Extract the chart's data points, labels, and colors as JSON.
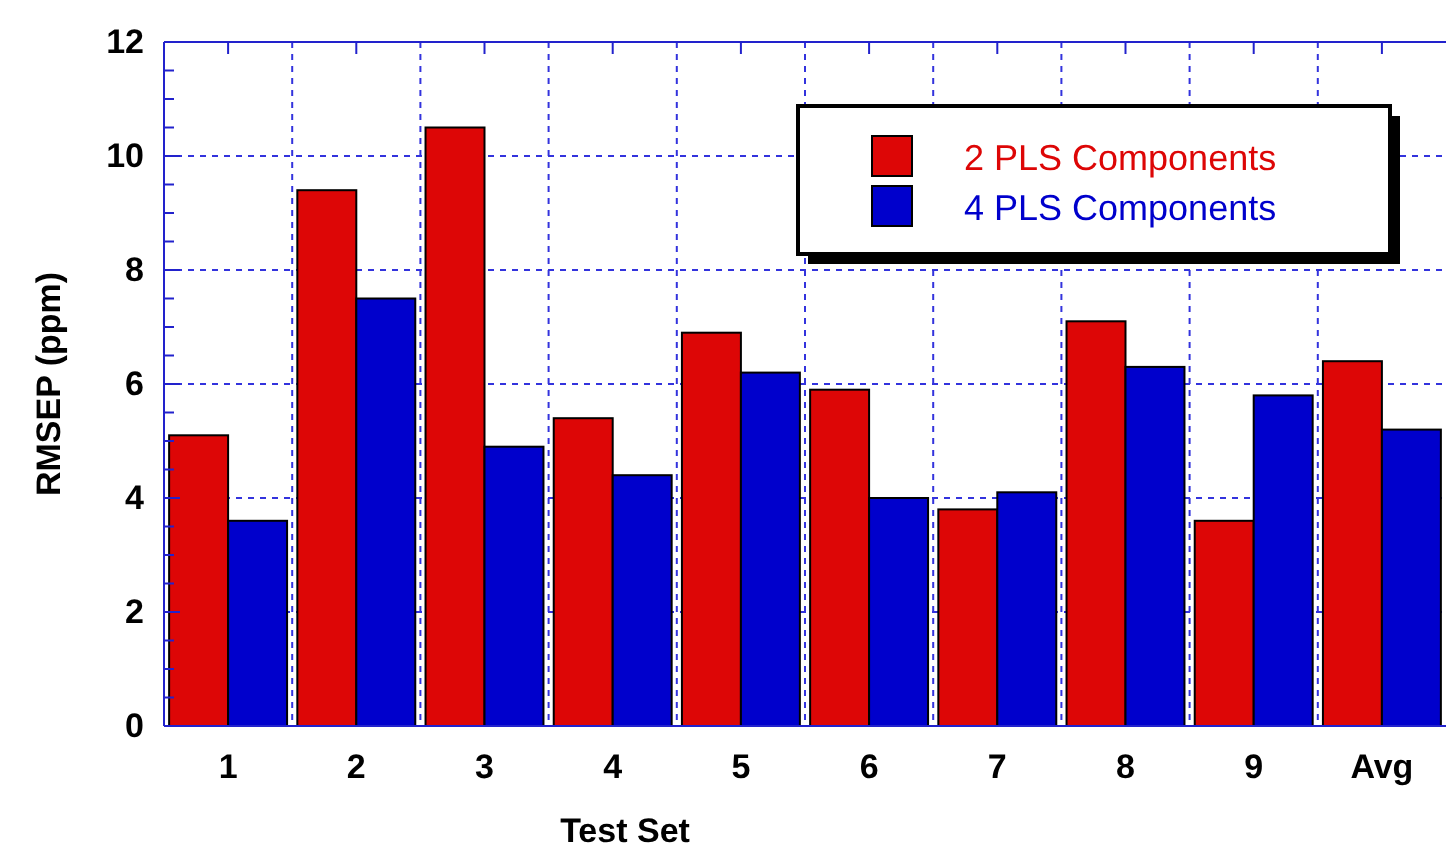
{
  "chart_data": {
    "type": "bar",
    "xlabel": "Test Set",
    "ylabel": "RMSEP (ppm)",
    "categories": [
      "1",
      "2",
      "3",
      "4",
      "5",
      "6",
      "7",
      "8",
      "9",
      "Avg"
    ],
    "series": [
      {
        "name": "2 PLS Components",
        "color": "#dd0606",
        "values": [
          5.1,
          9.4,
          10.5,
          5.4,
          6.9,
          5.9,
          3.8,
          7.1,
          3.6,
          6.4
        ]
      },
      {
        "name": "4 PLS Components",
        "color": "#0000cc",
        "values": [
          3.6,
          7.5,
          4.9,
          4.4,
          6.2,
          4.0,
          4.1,
          6.3,
          5.8,
          5.2
        ]
      }
    ],
    "ylim": [
      0,
      12
    ],
    "yticks": [
      0,
      2,
      4,
      6,
      8,
      10,
      12
    ],
    "grid": true,
    "legend": "top right"
  }
}
